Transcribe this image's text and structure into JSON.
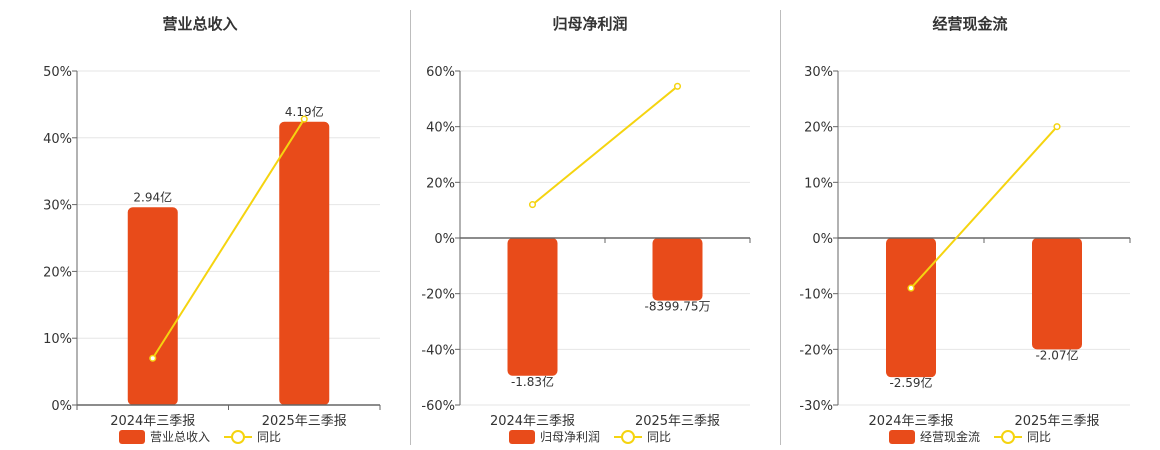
{
  "colors": {
    "bar": "#e84b1a",
    "line": "#f5d410",
    "grid": "#e6e6e6",
    "axis": "#666666"
  },
  "chart_data": [
    {
      "type": "bar",
      "title": "营业总收入",
      "categories": [
        "2024年三季报",
        "2025年三季报"
      ],
      "ylim": [
        0,
        50
      ],
      "yticks": [
        "0%",
        "10%",
        "20%",
        "30%",
        "40%",
        "50%"
      ],
      "grid": true,
      "legend_position": "bottom",
      "legend": {
        "bar": "营业总收入",
        "line": "同比"
      },
      "series": [
        {
          "name": "营业总收入",
          "type": "bar",
          "values": [
            29.6,
            42.4
          ],
          "labels": [
            "2.94亿",
            "4.19亿"
          ]
        },
        {
          "name": "同比",
          "type": "line",
          "values": [
            7.0,
            42.8
          ]
        }
      ]
    },
    {
      "type": "bar",
      "title": "归母净利润",
      "categories": [
        "2024年三季报",
        "2025年三季报"
      ],
      "ylim": [
        -60,
        60
      ],
      "yticks": [
        "-60%",
        "-40%",
        "-20%",
        "0%",
        "20%",
        "40%",
        "60%"
      ],
      "grid": true,
      "legend_position": "bottom",
      "legend": {
        "bar": "归母净利润",
        "line": "同比"
      },
      "series": [
        {
          "name": "归母净利润",
          "type": "bar",
          "values": [
            -49.5,
            -22.5
          ],
          "labels": [
            "-1.83亿",
            "-8399.75万"
          ]
        },
        {
          "name": "同比",
          "type": "line",
          "values": [
            12.0,
            54.5
          ]
        }
      ]
    },
    {
      "type": "bar",
      "title": "经营现金流",
      "categories": [
        "2024年三季报",
        "2025年三季报"
      ],
      "ylim": [
        -30,
        30
      ],
      "yticks": [
        "-30%",
        "-20%",
        "-10%",
        "0%",
        "10%",
        "20%",
        "30%"
      ],
      "grid": true,
      "legend_position": "bottom",
      "legend": {
        "bar": "经营现金流",
        "line": "同比"
      },
      "series": [
        {
          "name": "经营现金流",
          "type": "bar",
          "values": [
            -25.0,
            -20.0
          ],
          "labels": [
            "-2.59亿",
            "-2.07亿"
          ]
        },
        {
          "name": "同比",
          "type": "line",
          "values": [
            -9.0,
            20.0
          ]
        }
      ]
    }
  ]
}
